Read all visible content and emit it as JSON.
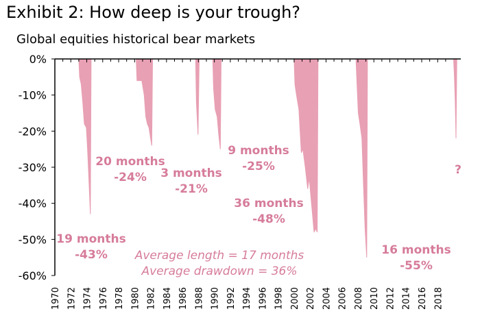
{
  "title": "Exhibit 2: How deep is your trough?",
  "subtitle": "Global equities historical bear markets",
  "colors": {
    "bars": "#e8a0b4",
    "annotation": "#d67c9a",
    "axis": "#000000"
  },
  "chart_data": {
    "type": "area",
    "title": "Exhibit 2: How deep is your trough?",
    "subtitle": "Global equities historical bear markets",
    "xlabel": "",
    "ylabel": "",
    "xlim": [
      1970,
      2020.9
    ],
    "ylim": [
      -60,
      0
    ],
    "x_axis_position": "top",
    "y_ticks": [
      "0%",
      "-10%",
      "-20%",
      "-30%",
      "-40%",
      "-50%",
      "-60%"
    ],
    "y_tick_values": [
      0,
      -10,
      -20,
      -30,
      -40,
      -50,
      -60
    ],
    "x_ticks": [
      "1970",
      "1972",
      "1974",
      "1976",
      "1978",
      "1980",
      "1982",
      "1984",
      "1986",
      "1988",
      "1990",
      "1992",
      "1994",
      "1996",
      "1998",
      "2000",
      "2002",
      "2004",
      "2006",
      "2008",
      "2010",
      "2012",
      "2014",
      "2016",
      "2018"
    ],
    "x_tick_values": [
      1970,
      1972,
      1974,
      1976,
      1978,
      1980,
      1982,
      1984,
      1986,
      1988,
      1990,
      1992,
      1994,
      1996,
      1998,
      2000,
      2002,
      2004,
      2006,
      2008,
      2010,
      2012,
      2014,
      2016,
      2018
    ],
    "series": [
      {
        "points": [
          [
            1973.0,
            0
          ],
          [
            1973.1,
            -5
          ],
          [
            1973.3,
            -7
          ],
          [
            1973.5,
            -12
          ],
          [
            1973.7,
            -18
          ],
          [
            1973.95,
            -19
          ],
          [
            1974.1,
            -25
          ],
          [
            1974.3,
            -35
          ],
          [
            1974.45,
            -43
          ],
          [
            1974.55,
            0
          ]
        ]
      },
      {
        "points": [
          [
            1980.2,
            0
          ],
          [
            1980.3,
            -6
          ],
          [
            1980.6,
            -6
          ],
          [
            1980.9,
            -6
          ],
          [
            1981.2,
            -10
          ],
          [
            1981.4,
            -16
          ],
          [
            1981.6,
            -18
          ],
          [
            1981.8,
            -19
          ],
          [
            1982.0,
            -22
          ],
          [
            1982.15,
            -24
          ],
          [
            1982.25,
            0
          ]
        ]
      },
      {
        "points": [
          [
            1987.65,
            0
          ],
          [
            1987.75,
            -12
          ],
          [
            1987.95,
            -21
          ],
          [
            1988.1,
            0
          ]
        ]
      },
      {
        "points": [
          [
            1989.8,
            0
          ],
          [
            1989.9,
            -8
          ],
          [
            1990.1,
            -14
          ],
          [
            1990.35,
            -16
          ],
          [
            1990.55,
            -21
          ],
          [
            1990.75,
            -25
          ],
          [
            1990.85,
            0
          ]
        ]
      },
      {
        "points": [
          [
            2000.0,
            0
          ],
          [
            2000.1,
            -7
          ],
          [
            2000.3,
            -10
          ],
          [
            2000.6,
            -14
          ],
          [
            2000.9,
            -26
          ],
          [
            2001.1,
            -25
          ],
          [
            2001.4,
            -30
          ],
          [
            2001.7,
            -36
          ],
          [
            2001.9,
            -33
          ],
          [
            2002.1,
            -38
          ],
          [
            2002.3,
            -43
          ],
          [
            2002.5,
            -48
          ],
          [
            2002.7,
            -47
          ],
          [
            2002.9,
            -48
          ],
          [
            2003.0,
            0
          ]
        ]
      },
      {
        "points": [
          [
            2007.75,
            0
          ],
          [
            2007.85,
            -5
          ],
          [
            2008.05,
            -15
          ],
          [
            2008.25,
            -18
          ],
          [
            2008.5,
            -22
          ],
          [
            2008.7,
            -35
          ],
          [
            2008.9,
            -47
          ],
          [
            2009.1,
            -55
          ],
          [
            2009.2,
            0
          ]
        ]
      },
      {
        "points": [
          [
            2020.0,
            0
          ],
          [
            2020.1,
            -5
          ],
          [
            2020.2,
            -12
          ],
          [
            2020.3,
            -22
          ],
          [
            2020.4,
            0
          ]
        ]
      }
    ],
    "annotations": [
      {
        "lines": [
          "19 months",
          "-43%"
        ],
        "style": "bold"
      },
      {
        "lines": [
          "20 months",
          "-24%"
        ],
        "style": "bold"
      },
      {
        "lines": [
          "3 months",
          "-21%"
        ],
        "style": "bold"
      },
      {
        "lines": [
          "9 months",
          "-25%"
        ],
        "style": "bold"
      },
      {
        "lines": [
          "36 months",
          "-48%"
        ],
        "style": "bold"
      },
      {
        "lines": [
          "16 months",
          "-55%"
        ],
        "style": "bold"
      },
      {
        "lines": [
          "?"
        ],
        "style": "bold"
      },
      {
        "lines": [
          "Average length = 17 months",
          "Average drawdown = 36%"
        ],
        "style": "italic"
      }
    ]
  }
}
